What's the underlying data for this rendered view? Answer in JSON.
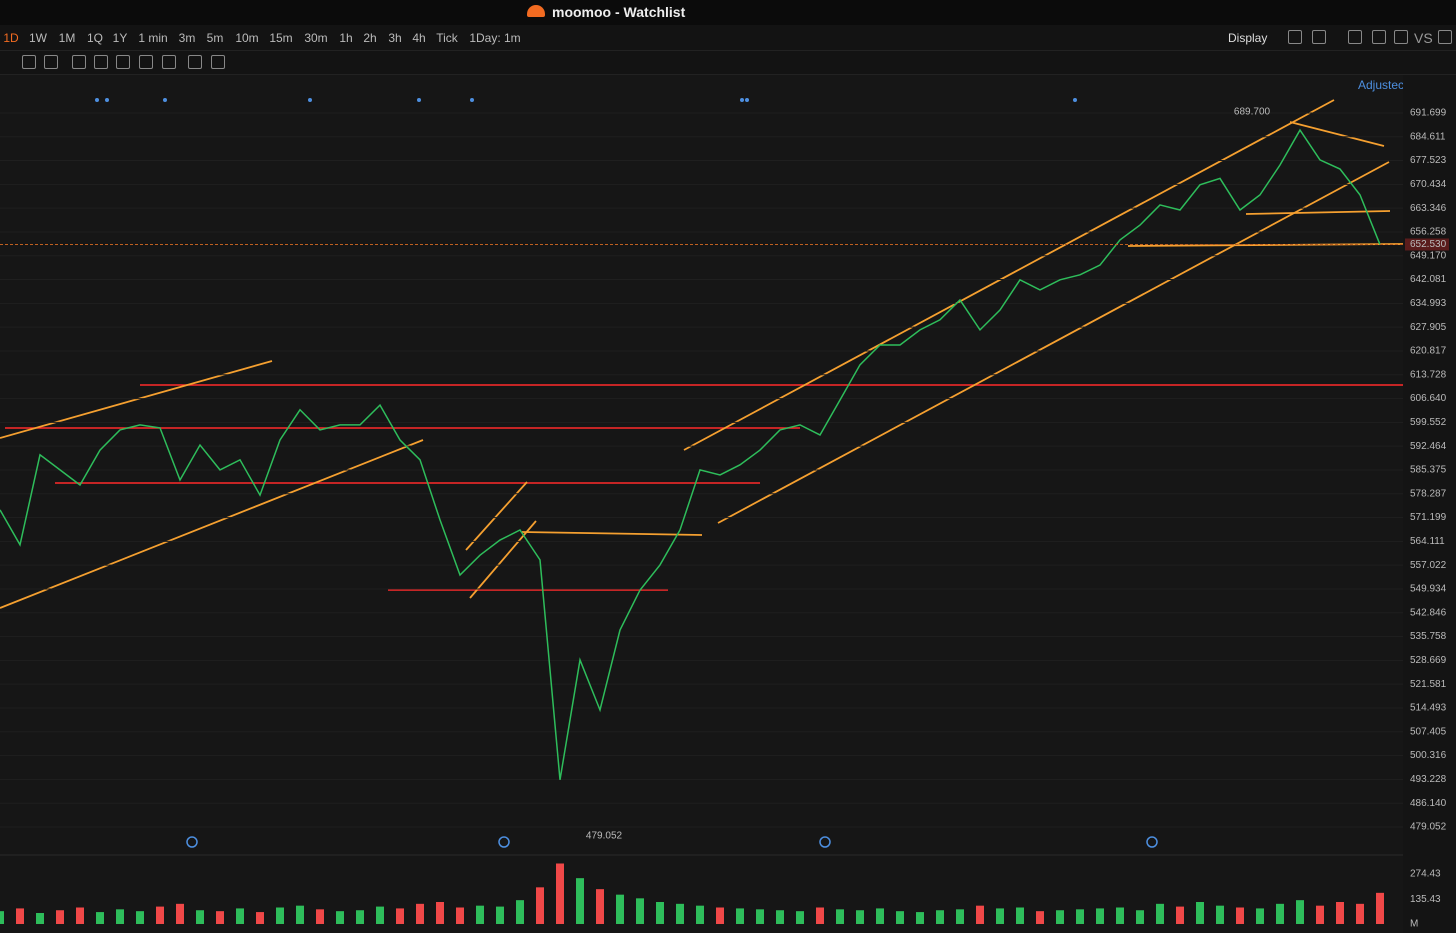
{
  "window_title": "moomoo - Watchlist",
  "toolbar": {
    "periods": [
      "1D",
      "1W",
      "1M",
      "1Q",
      "1Y",
      "1 min",
      "3m",
      "5m",
      "10m",
      "15m",
      "30m",
      "1h",
      "2h",
      "3h",
      "4h",
      "Tick",
      "1Day: 1m"
    ],
    "display": "Display",
    "compare": "VS",
    "adjust": "Adjustec"
  },
  "chart_data": [
    {
      "type": "line",
      "color": "#2ebd5b",
      "values": [
        573.5,
        563.1,
        589.9,
        585.4,
        580.9,
        591.3,
        597.3,
        598.8,
        597.9,
        582.4,
        592.8,
        585.4,
        588.4,
        577.9,
        594.3,
        603.3,
        597.3,
        598.8,
        598.8,
        604.7,
        594.3,
        588.4,
        570.5,
        554.1,
        560.0,
        564.5,
        567.5,
        558.6,
        493.1,
        528.8,
        513.9,
        537.7,
        549.6,
        557.1,
        567.5,
        585.4,
        583.9,
        586.9,
        591.3,
        597.3,
        598.8,
        595.8,
        606.2,
        616.7,
        622.6,
        622.6,
        627.1,
        630.1,
        636.0,
        627.1,
        633.0,
        642.0,
        639.0,
        642.0,
        643.5,
        646.4,
        653.9,
        658.3,
        664.3,
        662.8,
        670.3,
        672.2,
        662.8,
        667.3,
        676.2,
        686.6,
        677.7,
        675.0,
        667.3,
        652.5
      ],
      "ylim": [
        472.2,
        703.0
      ],
      "yticks": [
        691.699,
        684.611,
        677.523,
        670.434,
        663.346,
        656.258,
        {
          "value": 649.17,
          "label": "649.170"
        },
        642.081,
        634.993,
        627.905,
        620.817,
        613.728,
        {
          "value": 606.64,
          "label": "606.640"
        },
        599.552,
        592.464,
        585.375,
        578.287,
        571.199,
        564.111,
        557.022,
        549.934,
        542.846,
        535.758,
        528.669,
        521.581,
        514.493,
        507.405,
        500.316,
        493.228,
        {
          "value": 486.14,
          "label": "486.140"
        },
        479.052
      ],
      "grid": true,
      "annotations": [
        {
          "value": 689.7,
          "label": "689.700"
        },
        {
          "value": 479.052,
          "label": "479.052"
        }
      ],
      "last_price": {
        "value": 652.53,
        "label": "652.530"
      }
    },
    {
      "type": "bar",
      "color": "#2ebd5b",
      "down_color": "#f04848",
      "values": [
        70,
        85,
        60,
        75,
        90,
        65,
        80,
        70,
        95,
        110,
        75,
        70,
        85,
        65,
        90,
        100,
        80,
        70,
        75,
        95,
        85,
        110,
        120,
        90,
        100,
        95,
        130,
        200,
        330,
        250,
        190,
        160,
        140,
        120,
        110,
        100,
        90,
        85,
        80,
        75,
        70,
        90,
        80,
        75,
        85,
        70,
        65,
        75,
        80,
        100,
        85,
        90,
        70,
        75,
        80,
        85,
        90,
        75,
        110,
        95,
        120,
        100,
        90,
        85,
        110,
        130,
        100,
        120,
        110,
        170
      ],
      "ylim": [
        0,
        360
      ],
      "yticks": [
        274.43,
        135.43
      ],
      "unit": "M"
    }
  ]
}
